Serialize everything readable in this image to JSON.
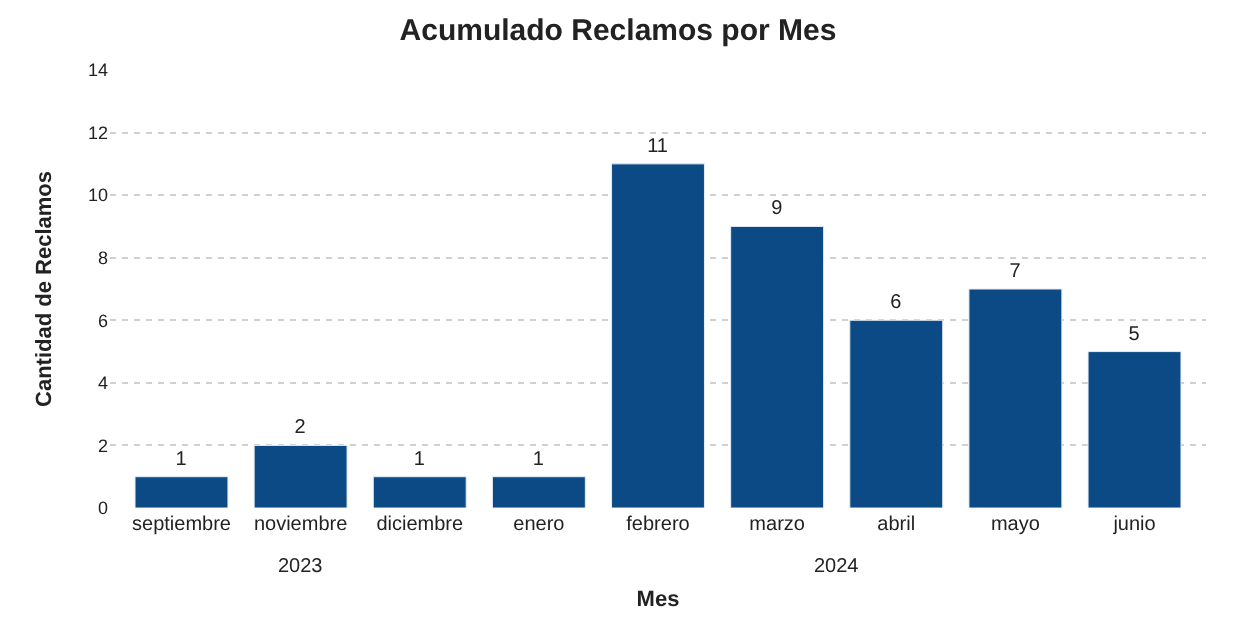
{
  "chart_data": {
    "type": "bar",
    "title": "Acumulado Reclamos por Mes",
    "xlabel": "Mes",
    "ylabel": "Cantidad de Reclamos",
    "categories": [
      "septiembre",
      "noviembre",
      "diciembre",
      "enero",
      "febrero",
      "marzo",
      "abril",
      "mayo",
      "junio"
    ],
    "values": [
      1,
      2,
      1,
      1,
      11,
      9,
      6,
      7,
      5
    ],
    "color": "#0b4a84",
    "ylim": [
      0,
      14
    ],
    "yticks": [
      0,
      2,
      4,
      6,
      8,
      10,
      12,
      14
    ],
    "grid": "y",
    "data_labels": true,
    "legend": false,
    "annotations": [
      "2023",
      "2024"
    ]
  }
}
